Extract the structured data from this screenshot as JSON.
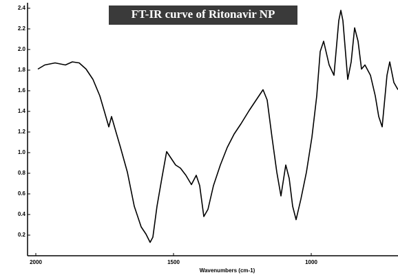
{
  "chart_data": {
    "type": "line",
    "title": "FT-IR curve of Ritonavir NP",
    "x_label": "Wavenumbers (cm-1)",
    "x": [
      1992.5,
      1967.5,
      1930,
      1892.5,
      1867.5,
      1842.5,
      1817.5,
      1792.5,
      1767.5,
      1750,
      1735,
      1725,
      1710,
      1692.5,
      1667.5,
      1642.5,
      1617.5,
      1600,
      1585,
      1575,
      1560,
      1542.5,
      1525,
      1510,
      1492.5,
      1475,
      1455,
      1435,
      1417.5,
      1405,
      1390,
      1375,
      1355,
      1330,
      1305,
      1280,
      1255,
      1225,
      1200,
      1175,
      1160,
      1142.5,
      1125,
      1110,
      1092.5,
      1080,
      1067.5,
      1055,
      1037.5,
      1017.5,
      997.5,
      980,
      967.5,
      955,
      935,
      917.5,
      900,
      892.5,
      885,
      867.5,
      855,
      842.5,
      830,
      817.5,
      805,
      785,
      767.5,
      755,
      742.5,
      725,
      715,
      700,
      685
    ],
    "values": [
      1.81,
      1.85,
      1.87,
      1.85,
      1.88,
      1.87,
      1.81,
      1.71,
      1.55,
      1.39,
      1.25,
      1.35,
      1.21,
      1.05,
      0.81,
      0.48,
      0.28,
      0.21,
      0.13,
      0.18,
      0.48,
      0.75,
      1.01,
      0.95,
      0.88,
      0.85,
      0.78,
      0.69,
      0.78,
      0.68,
      0.38,
      0.45,
      0.68,
      0.88,
      1.05,
      1.18,
      1.28,
      1.41,
      1.51,
      1.61,
      1.51,
      1.15,
      0.81,
      0.58,
      0.88,
      0.75,
      0.48,
      0.35,
      0.55,
      0.81,
      1.15,
      1.55,
      1.98,
      2.08,
      1.85,
      1.75,
      2.28,
      2.38,
      2.28,
      1.71,
      1.88,
      2.21,
      2.08,
      1.81,
      1.85,
      1.75,
      1.55,
      1.35,
      1.25,
      1.75,
      1.88,
      1.68,
      1.61
    ],
    "color": "#000000",
    "xlim": [
      2030,
      685
    ],
    "xticks": [
      2000,
      1500,
      1000
    ],
    "ylim": [
      0,
      2.45
    ],
    "yticks": [
      0.2,
      0.4,
      0.6,
      0.8,
      {
        "value": 1.0,
        "label": "1.0"
      },
      1.2,
      1.4,
      1.6,
      1.8,
      {
        "value": 2.0,
        "label": "2.0"
      },
      2.2,
      2.4
    ]
  }
}
